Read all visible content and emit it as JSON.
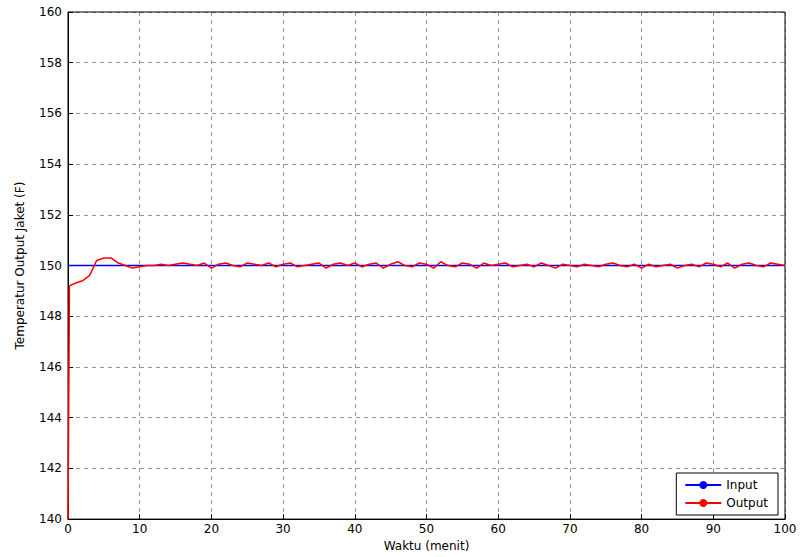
{
  "chart_data": {
    "type": "line",
    "xlabel": "Waktu (menit)",
    "ylabel": "Temperatur Output Jaket (F)",
    "x": [
      0,
      0.2,
      1,
      2,
      3,
      4,
      5,
      6,
      7,
      8,
      9,
      10,
      11,
      12,
      13,
      14,
      15,
      16,
      17,
      18,
      19,
      20,
      21,
      22,
      23,
      24,
      25,
      26,
      27,
      28,
      29,
      30,
      31,
      32,
      33,
      34,
      35,
      36,
      37,
      38,
      39,
      40,
      41,
      42,
      43,
      44,
      45,
      46,
      47,
      48,
      49,
      50,
      51,
      52,
      53,
      54,
      55,
      56,
      57,
      58,
      59,
      60,
      61,
      62,
      63,
      64,
      65,
      66,
      67,
      68,
      69,
      70,
      71,
      72,
      73,
      74,
      75,
      76,
      77,
      78,
      79,
      80,
      81,
      82,
      83,
      84,
      85,
      86,
      87,
      88,
      89,
      90,
      91,
      92,
      93,
      94,
      95,
      96,
      97,
      98,
      99,
      100
    ],
    "series": [
      {
        "name": "Input",
        "color": "#0000ff",
        "values": [
          150,
          150,
          150,
          150,
          150,
          150,
          150,
          150,
          150,
          150,
          150,
          150,
          150,
          150,
          150,
          150,
          150,
          150,
          150,
          150,
          150,
          150,
          150,
          150,
          150,
          150,
          150,
          150,
          150,
          150,
          150,
          150,
          150,
          150,
          150,
          150,
          150,
          150,
          150,
          150,
          150,
          150,
          150,
          150,
          150,
          150,
          150,
          150,
          150,
          150,
          150,
          150,
          150,
          150,
          150,
          150,
          150,
          150,
          150,
          150,
          150,
          150,
          150,
          150,
          150,
          150,
          150,
          150,
          150,
          150,
          150,
          150,
          150,
          150,
          150,
          150,
          150,
          150,
          150,
          150,
          150,
          150,
          150,
          150,
          150,
          150,
          150,
          150,
          150,
          150,
          150,
          150,
          150,
          150,
          150,
          150,
          150,
          150,
          150,
          150,
          150,
          150
        ]
      },
      {
        "name": "Output",
        "color": "#ff0000",
        "values": [
          140,
          149.2,
          149.3,
          149.4,
          149.6,
          150.2,
          150.3,
          150.3,
          150.1,
          150.0,
          149.9,
          149.95,
          150.0,
          150.0,
          150.05,
          150.0,
          150.05,
          150.1,
          150.05,
          150.0,
          150.1,
          149.9,
          150.05,
          150.1,
          150.0,
          149.95,
          150.1,
          150.05,
          150.0,
          150.1,
          149.95,
          150.05,
          150.1,
          149.95,
          150.0,
          150.05,
          150.1,
          149.9,
          150.05,
          150.1,
          150.0,
          150.1,
          149.95,
          150.05,
          150.1,
          149.9,
          150.05,
          150.15,
          150.0,
          149.95,
          150.1,
          150.05,
          149.9,
          150.15,
          150.0,
          149.95,
          150.1,
          150.05,
          149.9,
          150.1,
          150.0,
          150.05,
          150.1,
          149.95,
          150.0,
          150.05,
          149.95,
          150.1,
          150.0,
          149.9,
          150.05,
          150.0,
          149.95,
          150.05,
          150.0,
          149.95,
          150.05,
          150.1,
          150.0,
          149.95,
          150.05,
          149.9,
          150.05,
          149.95,
          150.0,
          150.05,
          149.9,
          150.0,
          150.05,
          149.95,
          150.1,
          150.05,
          149.95,
          150.1,
          149.9,
          150.05,
          150.1,
          150.0,
          149.95,
          150.1,
          150.05,
          150.0
        ]
      }
    ],
    "xlim": [
      0,
      100
    ],
    "xticks": [
      0,
      10,
      20,
      30,
      40,
      50,
      60,
      70,
      80,
      90,
      100
    ],
    "ylim": [
      140,
      160
    ],
    "yticks": [
      140,
      142,
      144,
      146,
      148,
      150,
      152,
      154,
      156,
      158,
      160
    ],
    "grid": true,
    "legend": "lower right"
  }
}
